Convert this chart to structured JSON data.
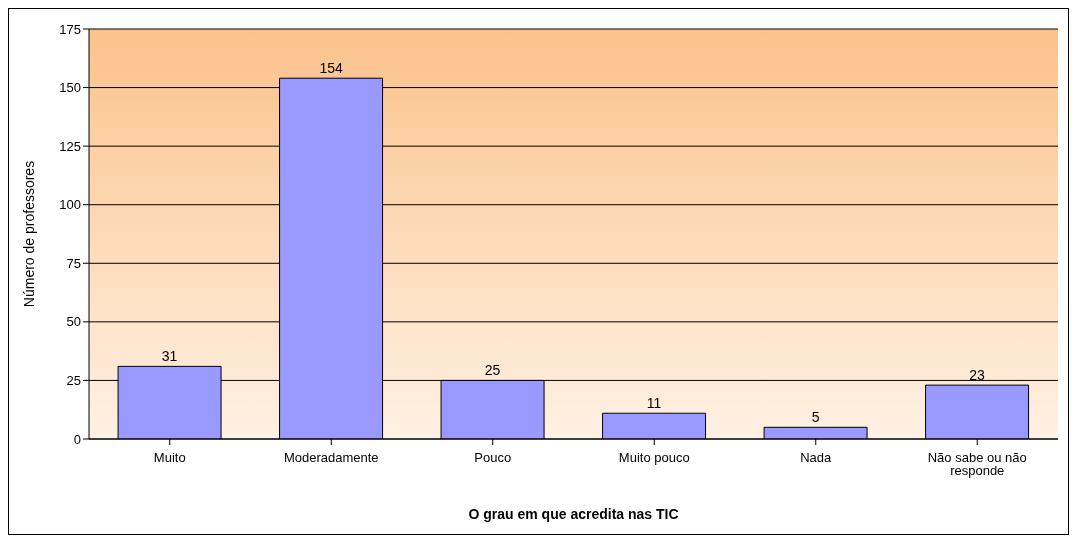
{
  "chart_data": {
    "type": "bar",
    "xlabel": "O grau em que acredita nas TIC",
    "ylabel": "Número de professores",
    "categories": [
      "Muito",
      "Moderadamente",
      "Pouco",
      "Muito pouco",
      "Nada",
      "Não sabe ou não responde"
    ],
    "values": [
      31,
      154,
      25,
      11,
      5,
      23
    ],
    "color": "#9999ff",
    "ylim": [
      0,
      175
    ],
    "yticks": [
      0,
      25,
      50,
      75,
      100,
      125,
      150,
      175
    ],
    "grid": "y",
    "data_labels": true,
    "legend": false
  }
}
